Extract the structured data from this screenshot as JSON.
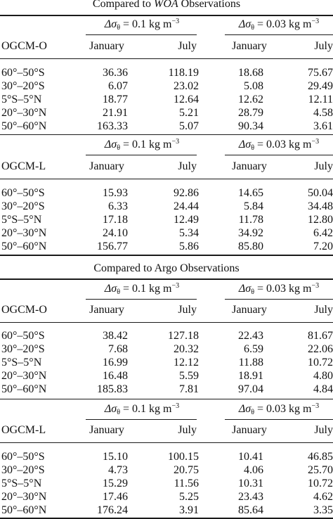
{
  "sections": [
    {
      "caption_prefix": "Compared to ",
      "caption_emph": "WOA",
      "caption_suffix": " Observations",
      "blocks": [
        {
          "model": "OGCM-O",
          "group1": "0.1",
          "group2": "0.03",
          "col_jan": "January",
          "col_jul": "July",
          "rows": [
            [
              "60°–50°S",
              "36.36",
              "118.19",
              "18.68",
              "75.67"
            ],
            [
              "30°–20°S",
              "6.07",
              "23.02",
              "5.08",
              "29.49"
            ],
            [
              "5°S–5°N",
              "18.77",
              "12.64",
              "12.62",
              "12.11"
            ],
            [
              "20°–30°N",
              "21.91",
              "5.21",
              "28.79",
              "4.58"
            ],
            [
              "50°–60°N",
              "163.33",
              "5.07",
              "90.34",
              "3.61"
            ]
          ]
        },
        {
          "model": "OGCM-L",
          "group1": "0.1",
          "group2": "0.03",
          "col_jan": "January",
          "col_jul": "July",
          "rows": [
            [
              "60°–50°S",
              "15.93",
              "92.86",
              "14.65",
              "50.04"
            ],
            [
              "30°–20°S",
              "6.33",
              "24.44",
              "5.84",
              "34.48"
            ],
            [
              "5°S–5°N",
              "17.18",
              "12.49",
              "11.78",
              "12.80"
            ],
            [
              "20°–30°N",
              "24.10",
              "5.34",
              "34.92",
              "6.42"
            ],
            [
              "50°–60°N",
              "156.77",
              "5.86",
              "85.80",
              "7.20"
            ]
          ]
        }
      ]
    },
    {
      "caption_prefix": "Compared to Argo Observations",
      "caption_emph": "",
      "caption_suffix": "",
      "blocks": [
        {
          "model": "OGCM-O",
          "group1": "0.1",
          "group2": "0.03",
          "col_jan": "January",
          "col_jul": "July",
          "rows": [
            [
              "60°–50°S",
              "38.42",
              "127.18",
              "22.43",
              "81.67"
            ],
            [
              "30°–20°S",
              "7.68",
              "20.32",
              "6.59",
              "22.06"
            ],
            [
              "5°S–5°N",
              "16.99",
              "12.12",
              "11.88",
              "10.72"
            ],
            [
              "20°–30°N",
              "16.48",
              "5.59",
              "18.91",
              "4.80"
            ],
            [
              "50°–60°N",
              "185.83",
              "7.81",
              "97.04",
              "4.84"
            ]
          ]
        },
        {
          "model": "OGCM-L",
          "group1": "0.1",
          "group2": "0.03",
          "col_jan": "January",
          "col_jul": "July",
          "rows": [
            [
              "60°–50°S",
              "15.10",
              "100.15",
              "10.41",
              "46.85"
            ],
            [
              "30°–20°S",
              "4.73",
              "20.75",
              "4.06",
              "25.70"
            ],
            [
              "5°S–5°N",
              "15.29",
              "11.56",
              "10.31",
              "10.72"
            ],
            [
              "20°–30°N",
              "17.46",
              "5.25",
              "23.43",
              "4.62"
            ],
            [
              "50°–60°N",
              "176.24",
              "3.91",
              "85.64",
              "3.35"
            ]
          ]
        }
      ]
    }
  ],
  "units": {
    "delta": "Δσ",
    "sub": "θ",
    "equals": " = ",
    "unit_kg": " kg m",
    "unit_exp": "−3"
  }
}
